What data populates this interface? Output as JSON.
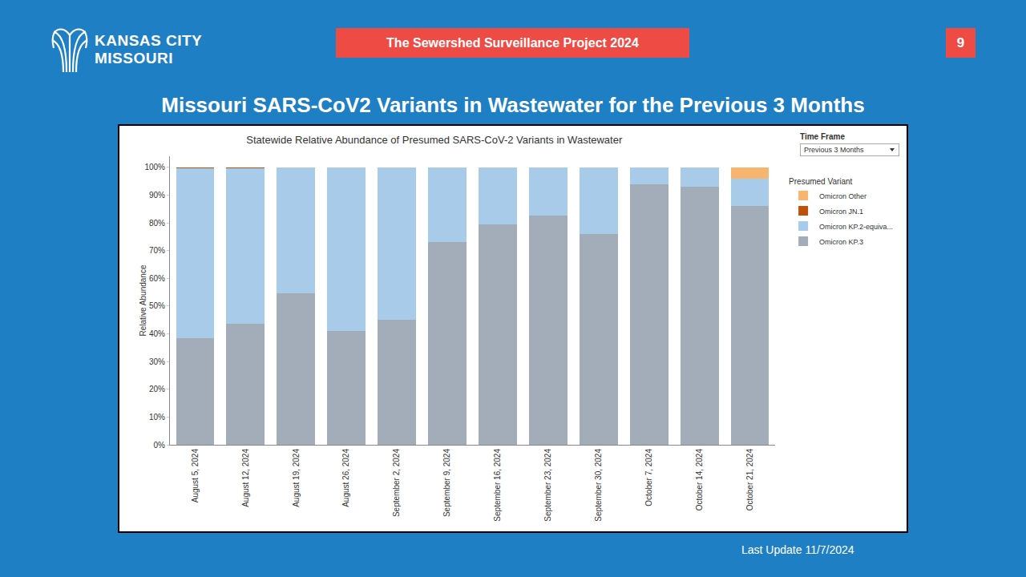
{
  "logo": [
    "KANSAS CITY",
    "MISSOURI"
  ],
  "banner": "The Sewershed Surveillance Project 2024",
  "page_number": "9",
  "heading": "Missouri SARS-CoV2 Variants in Wastewater for the Previous 3 Months",
  "time_frame": {
    "label": "Time Frame",
    "value": "Previous 3 Months"
  },
  "last_update": "Last Update 11/7/2024",
  "chart_data": {
    "type": "bar",
    "title": "Statewide Relative Abundance of Presumed SARS-CoV-2 Variants in Wastewater",
    "y_label": "Relative Abundance",
    "legend_title": "Presumed Variant",
    "stacked": true,
    "grid": false,
    "legend": "top right",
    "categories": [
      "August 5, 2024",
      "August 12, 2024",
      "August 19, 2024",
      "August 26, 2024",
      "September 2, 2024",
      "September 9, 2024",
      "September 16, 2024",
      "September 23, 2024",
      "September 30, 2024",
      "October 7, 2024",
      "October 14, 2024",
      "October 21, 2024"
    ],
    "series": [
      {
        "name": "Omicron KP.3",
        "color": "#a3acb9",
        "values": [
          38.5,
          43.5,
          54.5,
          41,
          45,
          73,
          79.5,
          82.5,
          76,
          94,
          93,
          86
        ]
      },
      {
        "name": "Omicron KP.2-equiva...",
        "color": "#a7cbe9",
        "values": [
          61.2,
          56.2,
          45.5,
          59,
          55,
          27,
          20.5,
          17.5,
          24,
          6,
          7,
          10
        ]
      },
      {
        "name": "Omicron JN.1",
        "color": "#c0510a",
        "values": [
          0.3,
          0.3,
          0,
          0,
          0,
          0,
          0,
          0,
          0,
          0,
          0,
          0
        ]
      },
      {
        "name": "Omicron Other",
        "color": "#f8b56f",
        "values": [
          0,
          0,
          0,
          0,
          0,
          0,
          0,
          0,
          0,
          0,
          0,
          4
        ]
      }
    ],
    "ylim": [
      0,
      104
    ],
    "yticks": [
      {
        "value": 0,
        "label": "0%"
      },
      {
        "value": 10,
        "label": "10%"
      },
      {
        "value": 20,
        "label": "20%"
      },
      {
        "value": 30,
        "label": "30%"
      },
      {
        "value": 40,
        "label": "40%"
      },
      {
        "value": 50,
        "label": "50%"
      },
      {
        "value": 60,
        "label": "60%"
      },
      {
        "value": 70,
        "label": "70%"
      },
      {
        "value": 80,
        "label": "80%"
      },
      {
        "value": 90,
        "label": "90%"
      },
      {
        "value": 100,
        "label": "100%"
      }
    ]
  }
}
